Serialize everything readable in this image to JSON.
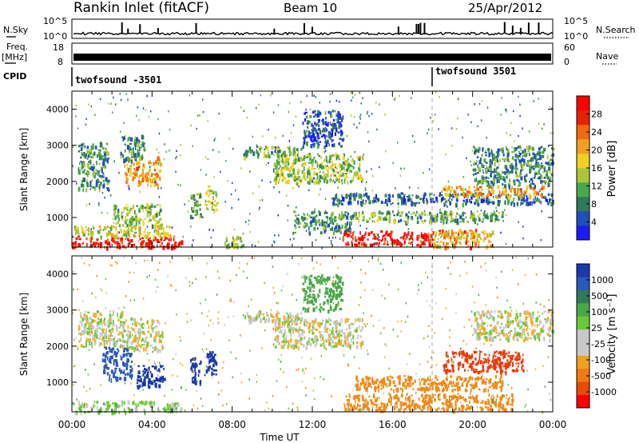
{
  "header": {
    "station": "Rankin Inlet (fitACF)",
    "beam": "Beam 10",
    "date": "25/Apr/2012"
  },
  "strip_panels": {
    "nsky": {
      "label": "N.Sky",
      "right_label": "N.Search",
      "ticks": [
        "10^5",
        "10^0"
      ]
    },
    "freq": {
      "label_line1": "Freq.",
      "label_line2": "[MHz]",
      "ticks_left": [
        "18",
        "8"
      ],
      "right_label": "Nave",
      "ticks_right": [
        "60",
        "0"
      ]
    },
    "cpid": {
      "label": "CPID",
      "segments": [
        {
          "text": "twofsound -3501",
          "start_hour": 0
        },
        {
          "text": "twofsound 3501",
          "start_hour": 18
        }
      ]
    }
  },
  "axes": {
    "xlabel": "Time UT",
    "xticks": [
      "00:00",
      "04:00",
      "08:00",
      "12:00",
      "16:00",
      "20:00",
      "00:00"
    ],
    "ylabel": "Slant Range [km]",
    "yticks": [
      "1000",
      "2000",
      "3000",
      "4000"
    ]
  },
  "colorbars": {
    "power": {
      "label": "Power [dB]",
      "ticks": [
        "4",
        "8",
        "12",
        "16",
        "20",
        "24",
        "28"
      ],
      "colors": [
        "#1a1aff",
        "#1f4fb8",
        "#2f7a5a",
        "#4aa84a",
        "#a8c83a",
        "#f0d020",
        "#f0a020",
        "#f06a10",
        "#e82008",
        "#ff0000"
      ]
    },
    "velocity": {
      "label": "Velocity [m s⁻¹]",
      "ticks": [
        "1000",
        "500",
        "100",
        "25",
        "-25",
        "-100",
        "-500",
        "-1000"
      ],
      "colors": [
        "#1a3aa8",
        "#2a5ab8",
        "#2f7a5a",
        "#4aa84a",
        "#6cc83a",
        "#c8c8c8",
        "#c8c8c8",
        "#f0a020",
        "#f07a10",
        "#e84a08",
        "#ff0000"
      ]
    }
  },
  "chart_data": [
    {
      "type": "heatmap",
      "title": "Power",
      "x_range_hours": [
        0,
        24
      ],
      "ylim": [
        180,
        4500
      ],
      "colorbar": "Power [dB]",
      "regions": [
        {
          "t0": 0.0,
          "t1": 5.5,
          "r0": 200,
          "r1": 500,
          "value": 28
        },
        {
          "t0": 0.0,
          "t1": 5.0,
          "r0": 500,
          "r1": 800,
          "value": 16
        },
        {
          "t0": 0.3,
          "t1": 1.8,
          "r0": 1800,
          "r1": 3100,
          "value": 10
        },
        {
          "t0": 2.6,
          "t1": 4.4,
          "r0": 1900,
          "r1": 2700,
          "value": 20
        },
        {
          "t0": 2.0,
          "t1": 4.5,
          "r0": 800,
          "r1": 1400,
          "value": 14
        },
        {
          "t0": 2.4,
          "t1": 3.6,
          "r0": 2600,
          "r1": 3300,
          "value": 10
        },
        {
          "t0": 5.8,
          "t1": 6.4,
          "r0": 1000,
          "r1": 1700,
          "value": 12
        },
        {
          "t0": 6.6,
          "t1": 7.2,
          "r0": 1200,
          "r1": 1900,
          "value": 16
        },
        {
          "t0": 7.5,
          "t1": 8.5,
          "r0": 200,
          "r1": 500,
          "value": 14
        },
        {
          "t0": 8.5,
          "t1": 11.5,
          "r0": 2700,
          "r1": 3000,
          "value": 12
        },
        {
          "t0": 10.0,
          "t1": 14.5,
          "r0": 2000,
          "r1": 2800,
          "value": 14
        },
        {
          "t0": 11.0,
          "t1": 14.0,
          "r0": 600,
          "r1": 1200,
          "value": 10
        },
        {
          "t0": 13.0,
          "t1": 24.0,
          "r0": 1400,
          "r1": 1700,
          "value": 8
        },
        {
          "t0": 13.5,
          "t1": 18.0,
          "r0": 250,
          "r1": 650,
          "value": 28
        },
        {
          "t0": 18.0,
          "t1": 21.0,
          "r0": 200,
          "r1": 700,
          "value": 20
        },
        {
          "t0": 14.0,
          "t1": 21.5,
          "r0": 900,
          "r1": 1200,
          "value": 12
        },
        {
          "t0": 18.5,
          "t1": 23.5,
          "r0": 1600,
          "r1": 1900,
          "value": 20
        },
        {
          "t0": 20.0,
          "t1": 24.0,
          "r0": 1900,
          "r1": 3000,
          "value": 10
        },
        {
          "t0": 11.5,
          "t1": 13.5,
          "r0": 3000,
          "r1": 4000,
          "value": 6
        }
      ]
    },
    {
      "type": "heatmap",
      "title": "Velocity",
      "x_range_hours": [
        0,
        24
      ],
      "ylim": [
        180,
        4500
      ],
      "colorbar": "Velocity [m s-1]",
      "regions": [
        {
          "t0": 0.0,
          "t1": 5.5,
          "r0": 200,
          "r1": 500,
          "value": 50
        },
        {
          "t0": 0.3,
          "t1": 2.5,
          "r0": 2000,
          "r1": 3000,
          "value": 0
        },
        {
          "t0": 2.5,
          "t1": 4.5,
          "r0": 1900,
          "r1": 2800,
          "value": 0
        },
        {
          "t0": 1.5,
          "t1": 3.0,
          "r0": 1100,
          "r1": 2000,
          "value": 500
        },
        {
          "t0": 3.2,
          "t1": 4.6,
          "r0": 900,
          "r1": 1500,
          "value": 1000
        },
        {
          "t0": 5.8,
          "t1": 6.4,
          "r0": 1000,
          "r1": 1700,
          "value": 1000
        },
        {
          "t0": 6.6,
          "t1": 7.2,
          "r0": 1200,
          "r1": 1900,
          "value": 1000
        },
        {
          "t0": 8.5,
          "t1": 11.5,
          "r0": 2700,
          "r1": 3000,
          "value": 0
        },
        {
          "t0": 10.0,
          "t1": 14.5,
          "r0": 2000,
          "r1": 2800,
          "value": 0
        },
        {
          "t0": 13.5,
          "t1": 22.0,
          "r0": 250,
          "r1": 700,
          "value": -300
        },
        {
          "t0": 14.0,
          "t1": 21.5,
          "r0": 800,
          "r1": 1200,
          "value": -200
        },
        {
          "t0": 18.5,
          "t1": 22.5,
          "r0": 1300,
          "r1": 1900,
          "value": -600
        },
        {
          "t0": 20.0,
          "t1": 24.0,
          "r0": 2200,
          "r1": 3000,
          "value": 0
        },
        {
          "t0": 11.5,
          "t1": 13.5,
          "r0": 3000,
          "r1": 4000,
          "value": 200
        }
      ]
    }
  ]
}
